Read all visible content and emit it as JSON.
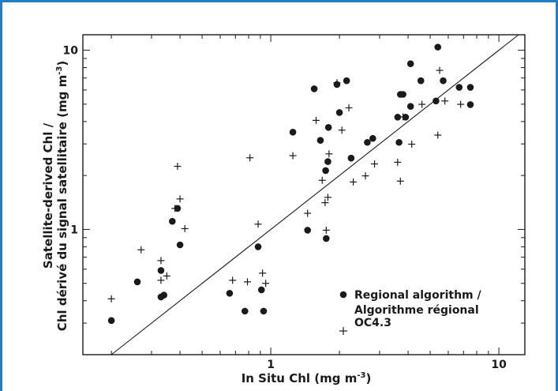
{
  "colors": {
    "frame": "#1f7fc1",
    "ink": "#1a1a1a"
  },
  "chart_data": {
    "type": "scatter",
    "xscale": "log",
    "yscale": "log",
    "xlim": [
      0.15,
      13
    ],
    "ylim": [
      0.2,
      12.2
    ],
    "xlabel_main": "In Situ Chl (mg m",
    "xlabel_exp": "-3",
    "xlabel_end": ")",
    "ylabel_line1": "Satellite-derived Chl /",
    "ylabel_line2_main": "Chl dérivé du signal satellitaire (mg m",
    "ylabel_line2_exp": "-3",
    "ylabel_line2_end": ")",
    "xticks": [
      1,
      10
    ],
    "xtick_labels": [
      "1",
      "10"
    ],
    "yticks": [
      1,
      10
    ],
    "ytick_labels": [
      "1",
      "10"
    ],
    "one_to_one_line": true,
    "grid": false,
    "legend_position": "bottom-right",
    "series": [
      {
        "name": "Regional algorithm / Algorithme régional",
        "marker": "circle",
        "points": [
          [
            0.2,
            0.31
          ],
          [
            0.26,
            0.51
          ],
          [
            0.33,
            0.59
          ],
          [
            0.33,
            0.42
          ],
          [
            0.34,
            0.43
          ],
          [
            0.37,
            1.11
          ],
          [
            0.39,
            1.31
          ],
          [
            0.4,
            0.82
          ],
          [
            0.66,
            0.44
          ],
          [
            0.77,
            0.35
          ],
          [
            0.88,
            0.8
          ],
          [
            0.91,
            0.46
          ],
          [
            0.93,
            0.35
          ],
          [
            1.25,
            3.49
          ],
          [
            1.45,
            0.99
          ],
          [
            1.55,
            6.09
          ],
          [
            1.65,
            3.14
          ],
          [
            1.74,
            2.13
          ],
          [
            1.75,
            0.89
          ],
          [
            1.78,
            2.39
          ],
          [
            1.79,
            3.71
          ],
          [
            1.95,
            6.44
          ],
          [
            2.0,
            4.49
          ],
          [
            2.15,
            6.76
          ],
          [
            2.25,
            2.5
          ],
          [
            2.65,
            3.06
          ],
          [
            2.8,
            3.22
          ],
          [
            3.6,
            4.23
          ],
          [
            3.65,
            3.06
          ],
          [
            3.7,
            5.67
          ],
          [
            3.8,
            5.67
          ],
          [
            3.9,
            4.23
          ],
          [
            4.1,
            8.41
          ],
          [
            4.1,
            4.86
          ],
          [
            4.55,
            6.76
          ],
          [
            5.3,
            5.21
          ],
          [
            5.4,
            10.41
          ],
          [
            5.7,
            6.76
          ],
          [
            6.7,
            6.21
          ],
          [
            7.5,
            6.21
          ],
          [
            7.5,
            4.97
          ]
        ]
      },
      {
        "name": "OC4.3",
        "marker": "plus",
        "points": [
          [
            0.2,
            0.41
          ],
          [
            0.27,
            0.77
          ],
          [
            0.33,
            0.67
          ],
          [
            0.33,
            0.52
          ],
          [
            0.35,
            0.55
          ],
          [
            0.38,
            1.31
          ],
          [
            0.39,
            2.25
          ],
          [
            0.4,
            1.48
          ],
          [
            0.42,
            1.01
          ],
          [
            0.68,
            0.52
          ],
          [
            0.79,
            0.51
          ],
          [
            0.81,
            2.51
          ],
          [
            0.88,
            1.07
          ],
          [
            0.92,
            0.57
          ],
          [
            0.95,
            0.5
          ],
          [
            1.25,
            2.58
          ],
          [
            1.45,
            1.23
          ],
          [
            1.58,
            4.06
          ],
          [
            1.68,
            1.88
          ],
          [
            1.73,
            1.41
          ],
          [
            1.75,
            0.99
          ],
          [
            1.78,
            1.51
          ],
          [
            1.8,
            2.64
          ],
          [
            1.95,
            6.58
          ],
          [
            2.05,
            3.58
          ],
          [
            2.2,
            4.77
          ],
          [
            2.3,
            1.84
          ],
          [
            2.6,
            1.99
          ],
          [
            2.85,
            2.32
          ],
          [
            3.6,
            2.37
          ],
          [
            3.7,
            1.86
          ],
          [
            3.8,
            4.25
          ],
          [
            4.15,
            2.99
          ],
          [
            4.6,
            4.99
          ],
          [
            5.4,
            3.36
          ],
          [
            5.5,
            7.72
          ],
          [
            5.8,
            5.21
          ],
          [
            6.8,
            4.99
          ]
        ]
      }
    ]
  },
  "legend": {
    "circle_line1": "Regional algorithm /",
    "circle_line2": "Algorithme régional",
    "plus_label": "OC4.3"
  }
}
